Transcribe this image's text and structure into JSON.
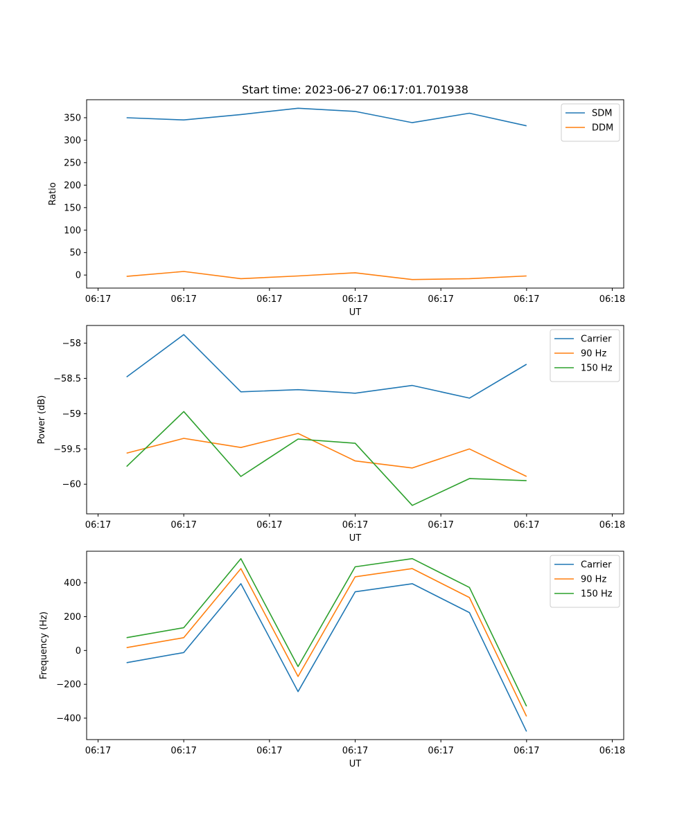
{
  "figure": {
    "title": "Start time: 2023-06-27 06:17:01.701938"
  },
  "chart_data": [
    {
      "type": "line",
      "title": "Start time: 2023-06-27 06:17:01.701938",
      "xlabel": "UT",
      "ylabel": "Ratio",
      "x_ticks": [
        "06:17",
        "06:17",
        "06:17",
        "06:17",
        "06:17",
        "06:17",
        "06:18"
      ],
      "x_points": [
        0.5,
        1.5,
        2.5,
        3.5,
        4.5,
        5.5,
        6.5,
        7.5
      ],
      "x_range": [
        -0.2,
        9.2
      ],
      "ylim": [
        -29,
        390
      ],
      "y_ticks": [
        0,
        50,
        100,
        150,
        200,
        250,
        300,
        350
      ],
      "legend": "top-right",
      "series": [
        {
          "name": "SDM",
          "color": "#1f77b4",
          "values": [
            350,
            345,
            357,
            371,
            364,
            339,
            360,
            332
          ]
        },
        {
          "name": "DDM",
          "color": "#ff7f0e",
          "values": [
            -3,
            8,
            -8,
            -2,
            5,
            -10,
            -8,
            -2
          ]
        }
      ]
    },
    {
      "type": "line",
      "xlabel": "UT",
      "ylabel": "Power (dB)",
      "x_ticks": [
        "06:17",
        "06:17",
        "06:17",
        "06:17",
        "06:17",
        "06:17",
        "06:18"
      ],
      "x_points": [
        0.5,
        1.5,
        2.5,
        3.5,
        4.5,
        5.5,
        6.5,
        7.5
      ],
      "x_range": [
        -0.2,
        9.2
      ],
      "ylim": [
        -60.42,
        -57.75
      ],
      "y_ticks": [
        -58.0,
        -58.5,
        -59.0,
        -59.5,
        -60.0
      ],
      "legend": "top-right",
      "series": [
        {
          "name": "Carrier",
          "color": "#1f77b4",
          "values": [
            -58.48,
            -57.88,
            -58.69,
            -58.66,
            -58.71,
            -58.6,
            -58.78,
            -58.3
          ]
        },
        {
          "name": "90 Hz",
          "color": "#ff7f0e",
          "values": [
            -59.56,
            -59.35,
            -59.48,
            -59.28,
            -59.67,
            -59.77,
            -59.5,
            -59.89
          ]
        },
        {
          "name": "150 Hz",
          "color": "#2ca02c",
          "values": [
            -59.75,
            -58.97,
            -59.89,
            -59.36,
            -59.42,
            -60.3,
            -59.92,
            -59.95
          ]
        }
      ]
    },
    {
      "type": "line",
      "xlabel": "UT",
      "ylabel": "Frequency (Hz)",
      "x_ticks": [
        "06:17",
        "06:17",
        "06:17",
        "06:17",
        "06:17",
        "06:17",
        "06:18"
      ],
      "x_points": [
        0.5,
        1.5,
        2.5,
        3.5,
        4.5,
        5.5,
        6.5,
        7.5
      ],
      "x_range": [
        -0.2,
        9.2
      ],
      "ylim": [
        -527,
        587
      ],
      "y_ticks": [
        400,
        200,
        0,
        -200,
        -400
      ],
      "legend": "top-right",
      "series": [
        {
          "name": "Carrier",
          "color": "#1f77b4",
          "values": [
            -72,
            -12,
            395,
            -243,
            347,
            395,
            224,
            -479
          ]
        },
        {
          "name": "90 Hz",
          "color": "#ff7f0e",
          "values": [
            17,
            76,
            484,
            -154,
            436,
            484,
            313,
            -390
          ]
        },
        {
          "name": "150 Hz",
          "color": "#2ca02c",
          "values": [
            76,
            135,
            543,
            -95,
            495,
            543,
            373,
            -330
          ]
        }
      ]
    }
  ]
}
